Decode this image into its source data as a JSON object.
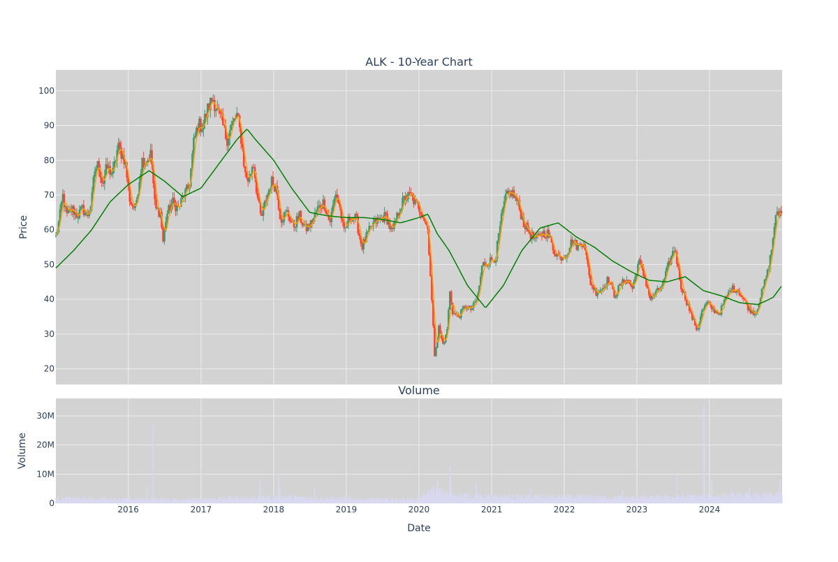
{
  "figure": {
    "title": "ALK - 10-Year Chart",
    "volume_title": "Volume",
    "background": "#ffffff",
    "plot_background": "#d3d3d3",
    "grid_color": "#ececec",
    "text_color": "#2a3f5f"
  },
  "chart_data": [
    {
      "type": "candlestick",
      "name": "price",
      "title": "ALK - 10-Year Chart",
      "xlabel": "",
      "ylabel": "Price",
      "xlim": [
        "2015-01-02",
        "2024-12-31"
      ],
      "ylim": [
        15.5,
        106
      ],
      "y_ticks": [
        20,
        30,
        40,
        50,
        60,
        70,
        80,
        90,
        100
      ],
      "x_ticks": [
        "2016",
        "2017",
        "2018",
        "2019",
        "2020",
        "2021",
        "2022",
        "2023",
        "2024"
      ],
      "grid": true,
      "colors": {
        "up": "#3d9970",
        "down": "#ff4136",
        "ma_short": "#ffa500",
        "ma_long": "#008000"
      },
      "close_anchors": [
        [
          "2015-01-02",
          58
        ],
        [
          "2015-01-20",
          63
        ],
        [
          "2015-02-05",
          70
        ],
        [
          "2015-02-25",
          64
        ],
        [
          "2015-03-25",
          66
        ],
        [
          "2015-04-20",
          64
        ],
        [
          "2015-05-15",
          66
        ],
        [
          "2015-06-10",
          64
        ],
        [
          "2015-07-01",
          68
        ],
        [
          "2015-07-15",
          77
        ],
        [
          "2015-08-05",
          79
        ],
        [
          "2015-08-25",
          73
        ],
        [
          "2015-09-15",
          78
        ],
        [
          "2015-10-15",
          76
        ],
        [
          "2015-11-10",
          84
        ],
        [
          "2015-12-15",
          80
        ],
        [
          "2016-01-10",
          68
        ],
        [
          "2016-02-05",
          66
        ],
        [
          "2016-03-10",
          80
        ],
        [
          "2016-04-05",
          80
        ],
        [
          "2016-04-25",
          82
        ],
        [
          "2016-05-15",
          66
        ],
        [
          "2016-06-10",
          65
        ],
        [
          "2016-06-25",
          56
        ],
        [
          "2016-07-10",
          64
        ],
        [
          "2016-08-10",
          68
        ],
        [
          "2016-09-10",
          66
        ],
        [
          "2016-10-05",
          70
        ],
        [
          "2016-11-01",
          72
        ],
        [
          "2016-11-25",
          85
        ],
        [
          "2016-12-15",
          90
        ],
        [
          "2017-01-10",
          90
        ],
        [
          "2017-02-05",
          95
        ],
        [
          "2017-03-01",
          98
        ],
        [
          "2017-03-25",
          94
        ],
        [
          "2017-04-15",
          91
        ],
        [
          "2017-05-10",
          86
        ],
        [
          "2017-06-05",
          90
        ],
        [
          "2017-07-01",
          93
        ],
        [
          "2017-07-25",
          85
        ],
        [
          "2017-08-10",
          76
        ],
        [
          "2017-08-30",
          74
        ],
        [
          "2017-09-20",
          80
        ],
        [
          "2017-10-10",
          70
        ],
        [
          "2017-10-30",
          63
        ],
        [
          "2017-11-20",
          68
        ],
        [
          "2017-12-20",
          74
        ],
        [
          "2018-01-15",
          72
        ],
        [
          "2018-02-05",
          63
        ],
        [
          "2018-03-10",
          65
        ],
        [
          "2018-04-10",
          61
        ],
        [
          "2018-05-10",
          64
        ],
        [
          "2018-06-10",
          60
        ],
        [
          "2018-07-10",
          62
        ],
        [
          "2018-08-10",
          66
        ],
        [
          "2018-09-10",
          68
        ],
        [
          "2018-10-10",
          62
        ],
        [
          "2018-11-10",
          71
        ],
        [
          "2018-12-01",
          66
        ],
        [
          "2018-12-20",
          59
        ],
        [
          "2019-01-20",
          64
        ],
        [
          "2019-02-20",
          63
        ],
        [
          "2019-03-20",
          55
        ],
        [
          "2019-04-20",
          59
        ],
        [
          "2019-05-20",
          62
        ],
        [
          "2019-06-20",
          63
        ],
        [
          "2019-07-20",
          64
        ],
        [
          "2019-08-20",
          59
        ],
        [
          "2019-09-20",
          65
        ],
        [
          "2019-10-20",
          69
        ],
        [
          "2019-11-20",
          70
        ],
        [
          "2019-12-20",
          67
        ],
        [
          "2020-01-20",
          65
        ],
        [
          "2020-02-15",
          60
        ],
        [
          "2020-03-01",
          45
        ],
        [
          "2020-03-20",
          24
        ],
        [
          "2020-04-10",
          32
        ],
        [
          "2020-04-30",
          27
        ],
        [
          "2020-05-20",
          30
        ],
        [
          "2020-06-05",
          42
        ],
        [
          "2020-06-20",
          36
        ],
        [
          "2020-07-20",
          35
        ],
        [
          "2020-08-20",
          38
        ],
        [
          "2020-09-20",
          37
        ],
        [
          "2020-10-20",
          40
        ],
        [
          "2020-11-15",
          50
        ],
        [
          "2020-12-20",
          51
        ],
        [
          "2021-01-20",
          52
        ],
        [
          "2021-02-15",
          62
        ],
        [
          "2021-03-10",
          69
        ],
        [
          "2021-04-10",
          71
        ],
        [
          "2021-05-10",
          68
        ],
        [
          "2021-06-10",
          62
        ],
        [
          "2021-07-10",
          59
        ],
        [
          "2021-08-10",
          57
        ],
        [
          "2021-09-10",
          59
        ],
        [
          "2021-10-10",
          59
        ],
        [
          "2021-11-10",
          54
        ],
        [
          "2021-12-10",
          52
        ],
        [
          "2022-01-10",
          53
        ],
        [
          "2022-02-10",
          57
        ],
        [
          "2022-03-10",
          55
        ],
        [
          "2022-04-10",
          57
        ],
        [
          "2022-05-10",
          45
        ],
        [
          "2022-06-10",
          42
        ],
        [
          "2022-07-10",
          43
        ],
        [
          "2022-08-10",
          46
        ],
        [
          "2022-09-10",
          41
        ],
        [
          "2022-10-10",
          44
        ],
        [
          "2022-11-10",
          46
        ],
        [
          "2022-12-10",
          43
        ],
        [
          "2023-01-10",
          51
        ],
        [
          "2023-02-10",
          46
        ],
        [
          "2023-03-10",
          40
        ],
        [
          "2023-04-10",
          42
        ],
        [
          "2023-05-10",
          44
        ],
        [
          "2023-06-10",
          50
        ],
        [
          "2023-07-10",
          55
        ],
        [
          "2023-08-10",
          44
        ],
        [
          "2023-09-10",
          39
        ],
        [
          "2023-10-10",
          34
        ],
        [
          "2023-11-01",
          31
        ],
        [
          "2023-11-20",
          36
        ],
        [
          "2023-12-20",
          39
        ],
        [
          "2024-01-20",
          37
        ],
        [
          "2024-02-20",
          36
        ],
        [
          "2024-03-20",
          40
        ],
        [
          "2024-04-20",
          43
        ],
        [
          "2024-05-20",
          43
        ],
        [
          "2024-06-20",
          40
        ],
        [
          "2024-07-20",
          37
        ],
        [
          "2024-08-20",
          36
        ],
        [
          "2024-09-20",
          42
        ],
        [
          "2024-10-20",
          48
        ],
        [
          "2024-11-10",
          55
        ],
        [
          "2024-11-25",
          63
        ],
        [
          "2024-12-31",
          66
        ]
      ],
      "ma_long_anchors": [
        [
          "2015-01-02",
          49
        ],
        [
          "2015-04-01",
          54
        ],
        [
          "2015-07-01",
          60
        ],
        [
          "2015-10-01",
          68
        ],
        [
          "2016-01-01",
          73
        ],
        [
          "2016-04-15",
          77
        ],
        [
          "2016-07-01",
          74
        ],
        [
          "2016-10-01",
          69.5
        ],
        [
          "2017-01-01",
          72
        ],
        [
          "2017-04-01",
          79
        ],
        [
          "2017-07-01",
          86
        ],
        [
          "2017-08-20",
          89
        ],
        [
          "2017-10-01",
          86
        ],
        [
          "2018-01-01",
          80
        ],
        [
          "2018-04-01",
          72
        ],
        [
          "2018-07-01",
          65
        ],
        [
          "2018-10-01",
          64
        ],
        [
          "2019-01-01",
          63.5
        ],
        [
          "2019-04-01",
          63.5
        ],
        [
          "2019-07-01",
          63
        ],
        [
          "2019-10-01",
          62
        ],
        [
          "2020-01-01",
          63.5
        ],
        [
          "2020-02-15",
          64.5
        ],
        [
          "2020-04-01",
          59
        ],
        [
          "2020-06-01",
          54
        ],
        [
          "2020-09-01",
          44
        ],
        [
          "2020-12-01",
          37.5
        ],
        [
          "2021-03-01",
          44
        ],
        [
          "2021-06-01",
          54
        ],
        [
          "2021-09-01",
          60.5
        ],
        [
          "2021-12-01",
          62
        ],
        [
          "2022-03-01",
          58
        ],
        [
          "2022-06-01",
          55
        ],
        [
          "2022-09-01",
          51
        ],
        [
          "2022-12-01",
          48
        ],
        [
          "2023-03-01",
          45.5
        ],
        [
          "2023-06-01",
          45
        ],
        [
          "2023-09-01",
          46.5
        ],
        [
          "2023-12-01",
          42.5
        ],
        [
          "2024-03-01",
          41
        ],
        [
          "2024-06-01",
          39
        ],
        [
          "2024-09-01",
          38.5
        ],
        [
          "2024-11-15",
          40.5
        ],
        [
          "2024-12-31",
          44
        ]
      ]
    },
    {
      "type": "bar",
      "name": "volume",
      "title": "Volume",
      "xlabel": "Date",
      "ylabel": "Volume",
      "xlim": [
        "2015-01-02",
        "2024-12-31"
      ],
      "ylim": [
        0,
        36000000
      ],
      "y_ticks": [
        0,
        10000000,
        20000000,
        30000000
      ],
      "y_tick_labels": [
        "0",
        "10M",
        "20M",
        "30M"
      ],
      "x_ticks": [
        "2016",
        "2017",
        "2018",
        "2019",
        "2020",
        "2021",
        "2022",
        "2023",
        "2024"
      ],
      "grid": true,
      "bar_color": "#d8d8f0",
      "baseline_anchors": [
        [
          "2015-01-02",
          1800000
        ],
        [
          "2016-01-01",
          1500000
        ],
        [
          "2017-01-01",
          1500000
        ],
        [
          "2018-01-01",
          2200000
        ],
        [
          "2019-01-01",
          1600000
        ],
        [
          "2020-01-01",
          1500000
        ],
        [
          "2020-03-15",
          4500000
        ],
        [
          "2020-07-01",
          3000000
        ],
        [
          "2021-01-01",
          2300000
        ],
        [
          "2022-01-01",
          2300000
        ],
        [
          "2023-01-01",
          2000000
        ],
        [
          "2024-01-01",
          2500000
        ],
        [
          "2024-12-31",
          3000000
        ]
      ],
      "spikes": [
        [
          "2016-05-06",
          27000000
        ],
        [
          "2016-04-04",
          6000000
        ],
        [
          "2017-10-25",
          8000000
        ],
        [
          "2018-01-25",
          10000000
        ],
        [
          "2018-02-01",
          5500000
        ],
        [
          "2018-07-26",
          6000000
        ],
        [
          "2020-03-12",
          6000000
        ],
        [
          "2020-04-03",
          7500000
        ],
        [
          "2020-06-05",
          13000000
        ],
        [
          "2020-06-09",
          9000000
        ],
        [
          "2020-10-15",
          6500000
        ],
        [
          "2021-07-15",
          5000000
        ],
        [
          "2022-10-20",
          4500000
        ],
        [
          "2023-07-20",
          10000000
        ],
        [
          "2023-12-04",
          34000000
        ],
        [
          "2023-12-06",
          22000000
        ],
        [
          "2024-01-12",
          8000000
        ],
        [
          "2024-04-20",
          5500000
        ],
        [
          "2024-07-20",
          5500000
        ],
        [
          "2024-12-20",
          8000000
        ]
      ]
    }
  ]
}
